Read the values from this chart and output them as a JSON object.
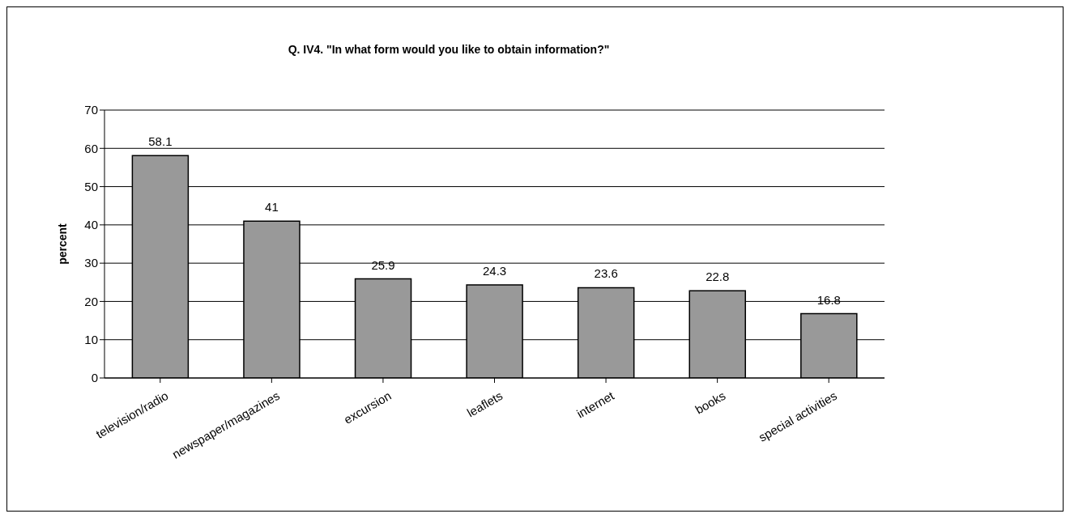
{
  "chart_data": {
    "type": "bar",
    "title": "Q. IV4. \"In what form would you like to obtain information?\"",
    "ylabel": "percent",
    "categories": [
      "television/radio",
      "newspaper/magazines",
      "excursion",
      "leaflets",
      "internet",
      "books",
      "special activities"
    ],
    "values": [
      58.1,
      41,
      25.9,
      24.3,
      23.6,
      22.8,
      16.8
    ],
    "color": "#999999",
    "ylim": [
      0,
      70
    ],
    "yticks": [
      0,
      10,
      20,
      30,
      40,
      50,
      60,
      70
    ],
    "grid": "y",
    "data_labels": true
  }
}
